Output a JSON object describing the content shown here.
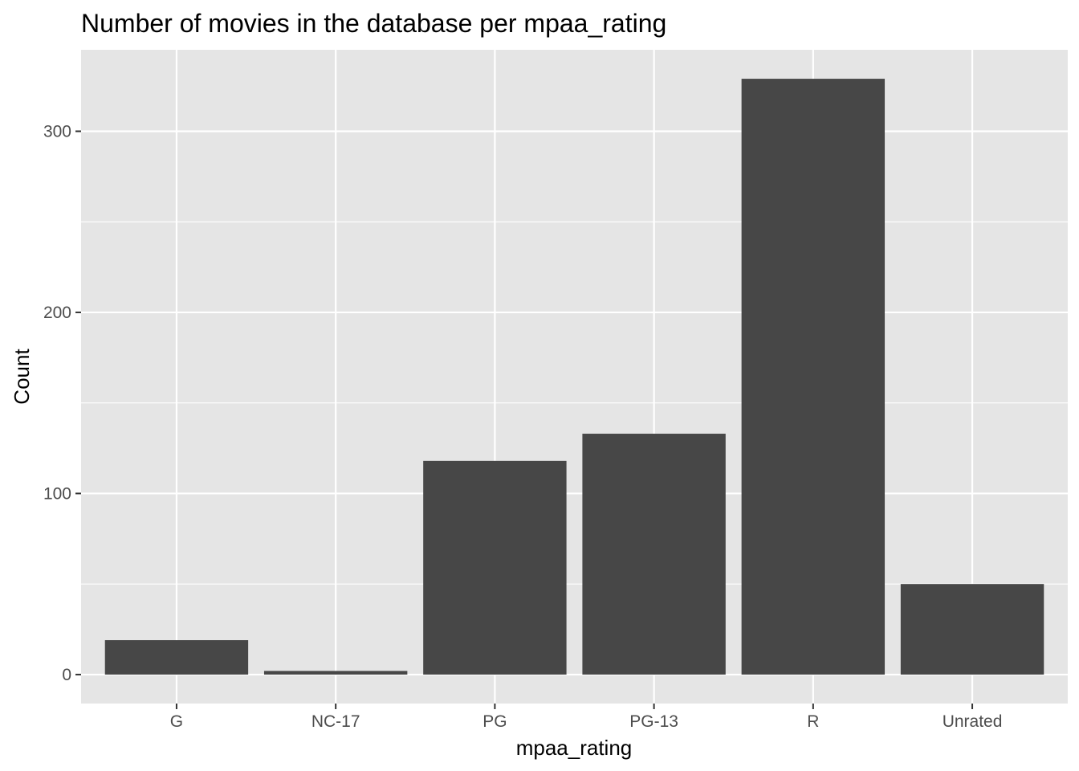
{
  "chart_data": {
    "type": "bar",
    "title": "Number of movies in the database per mpaa_rating",
    "xlabel": "mpaa_rating",
    "ylabel": "Count",
    "categories": [
      "G",
      "NC-17",
      "PG",
      "PG-13",
      "R",
      "Unrated"
    ],
    "values": [
      19,
      2,
      118,
      133,
      329,
      50
    ],
    "ylim": [
      -16,
      345
    ],
    "yticks": [
      0,
      100,
      200,
      300
    ],
    "ytick_labels": [
      "0",
      "100",
      "200",
      "300"
    ],
    "grid": true,
    "legend": "none",
    "colors": {
      "bar": "#474747",
      "panel": "#e5e5e5",
      "grid": "#ffffff",
      "tick": "#333333"
    }
  }
}
